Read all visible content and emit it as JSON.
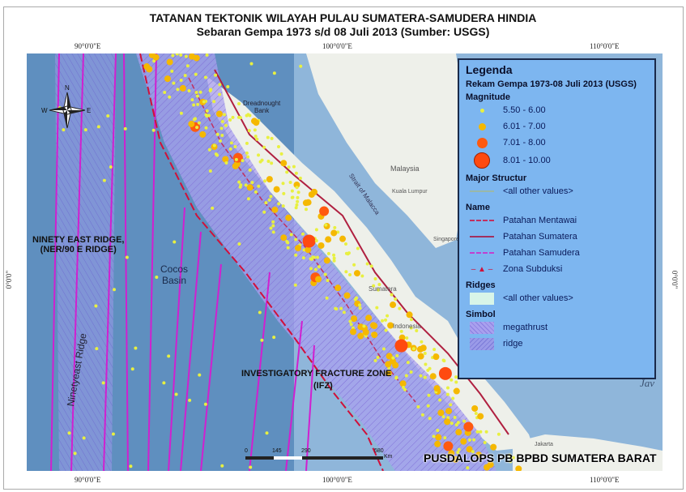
{
  "title": "TATANAN TEKTONIK WILAYAH PULAU SUMATERA-SAMUDERA HINDIA",
  "subtitle": "Sebaran Gempa 1973 s/d 08 Juli 2013 (Sumber: USGS)",
  "graticule": {
    "lon": [
      "90°0'0\"E",
      "100°0'0\"E",
      "110°0'0\"E"
    ],
    "lat": "0°0'0\""
  },
  "legend": {
    "title": "Legenda",
    "dataset": "Rekam Gempa 1973-08 Juli 2013 (USGS)",
    "magnitude_title": "Magnitude",
    "magnitude": [
      {
        "label": "5.50 - 6.00",
        "color": "#e8f040"
      },
      {
        "label": "6.01 - 7.00",
        "color": "#f5b800"
      },
      {
        "label": "7.01 - 8.00",
        "color": "#ff5a10"
      },
      {
        "label": "8.01 - 10.00",
        "color": "#ff4a10"
      }
    ],
    "major_title": "Major Structur",
    "major_other": "<all other values>",
    "name_title": "Name",
    "names": [
      "Patahan Mentawai",
      "Patahan Sumatera",
      "Patahan Samudera",
      "Zona Subduksi"
    ],
    "ridges_title": "Ridges",
    "ridges_other": "<all other values>",
    "simbol_title": "Simbol",
    "simbol": [
      "megathrust",
      "ridge"
    ]
  },
  "labels": {
    "ner": "NINETY EAST RIDGE,\n(NER/90 E RIDGE)",
    "ifz": "INVESTIGATORY FRACTURE ZONE",
    "ifz2": "(IFZ)",
    "credit": "PUSDALOPS PB BPBD SUMATERA BARAT",
    "cocos": "Cocos\nBasin",
    "ninetyeast": "Ninetyeast Ridge",
    "dreadnought": "Dreadnought\nBank",
    "malaysia": "Malaysia",
    "kl": "Kuala Lumpur",
    "malacca": "Strait of Malacca",
    "singapore": "Singapore",
    "sumatera": "Sumatera",
    "indonesia": "Indonesia",
    "java": "Jav",
    "jakarta": "Jakarta"
  },
  "scale": {
    "ticks": [
      "0",
      "145",
      "290",
      "580"
    ],
    "unit": "Km"
  },
  "colors": {
    "ocean": "#5f8fbf",
    "land": "#eef0ea",
    "megathrust": "#a9a0ee",
    "ridge_line": "#d020d0",
    "subduction": "#d0103a",
    "fault": "#b02040"
  }
}
